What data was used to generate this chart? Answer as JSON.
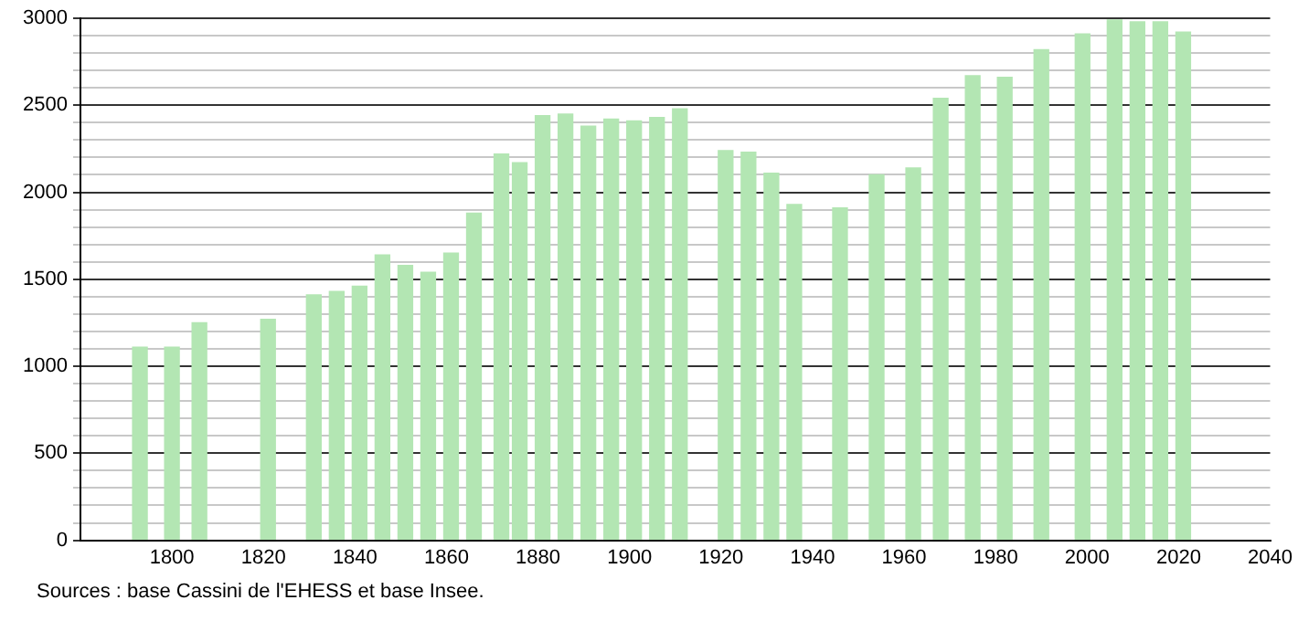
{
  "chart_data": {
    "type": "bar",
    "x": [
      1793,
      1800,
      1806,
      1821,
      1831,
      1836,
      1841,
      1846,
      1851,
      1856,
      1861,
      1866,
      1872,
      1876,
      1881,
      1886,
      1891,
      1896,
      1901,
      1906,
      1911,
      1921,
      1926,
      1931,
      1936,
      1946,
      1954,
      1962,
      1968,
      1975,
      1982,
      1990,
      1999,
      2006,
      2011,
      2016,
      2021
    ],
    "values": [
      1110,
      1110,
      1250,
      1270,
      1410,
      1430,
      1460,
      1640,
      1580,
      1540,
      1650,
      1880,
      2220,
      2170,
      2440,
      2450,
      2380,
      2420,
      2410,
      2430,
      2480,
      2240,
      2230,
      2110,
      1930,
      1910,
      2100,
      2140,
      2540,
      2670,
      2660,
      2820,
      2910,
      2990,
      2980,
      2980,
      2920
    ],
    "color": "#b3e6b3",
    "xlim": [
      1780,
      2040
    ],
    "xticks": [
      1800,
      1820,
      1840,
      1860,
      1880,
      1900,
      1920,
      1940,
      1960,
      1980,
      2000,
      2020,
      2040
    ],
    "ylim": [
      0,
      3000
    ],
    "yticks": [
      0,
      {
        "value": 100,
        "label": null
      },
      {
        "value": 200,
        "label": null
      },
      {
        "value": 300,
        "label": null
      },
      {
        "value": 400,
        "label": null
      },
      500,
      {
        "value": 600,
        "label": null
      },
      {
        "value": 700,
        "label": null
      },
      {
        "value": 800,
        "label": null
      },
      {
        "value": 900,
        "label": null
      },
      1000,
      {
        "value": 1100,
        "label": null
      },
      {
        "value": 1200,
        "label": null
      },
      {
        "value": 1300,
        "label": null
      },
      {
        "value": 1400,
        "label": null
      },
      1500,
      {
        "value": 1600,
        "label": null
      },
      {
        "value": 1700,
        "label": null
      },
      {
        "value": 1800,
        "label": null
      },
      {
        "value": 1900,
        "label": null
      },
      2000,
      {
        "value": 2100,
        "label": null
      },
      {
        "value": 2200,
        "label": null
      },
      {
        "value": 2300,
        "label": null
      },
      {
        "value": 2400,
        "label": null
      },
      2500,
      {
        "value": 2600,
        "label": null
      },
      {
        "value": 2700,
        "label": null
      },
      {
        "value": 2800,
        "label": null
      },
      {
        "value": 2900,
        "label": null
      },
      3000
    ],
    "grid": "y",
    "annotations": [
      "Sources : base Cassini de l'EHESS et base Insee."
    ]
  }
}
